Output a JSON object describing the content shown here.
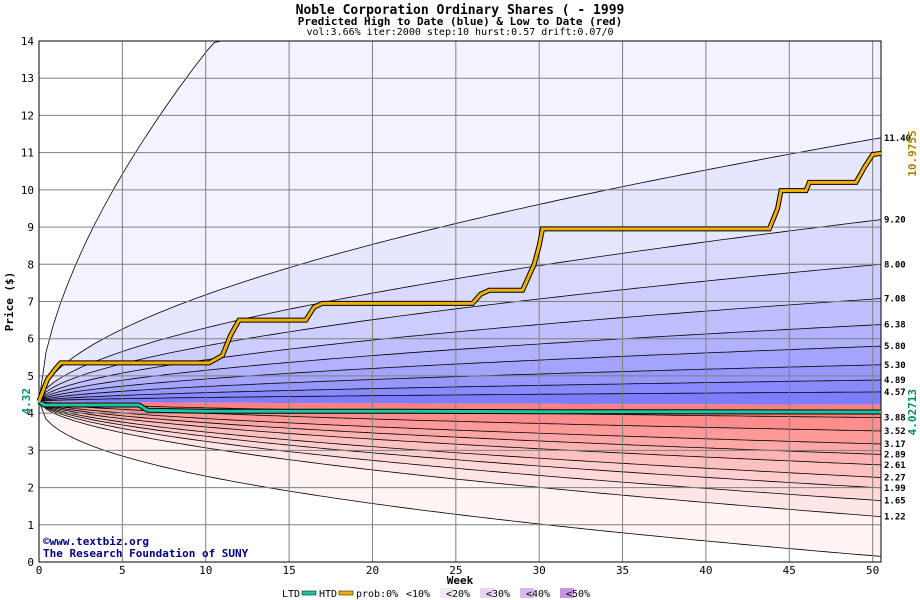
{
  "chart_data": {
    "type": "area",
    "title": "Noble Corporation Ordinary Shares ( - 1999",
    "subtitle": "Predicted High to Date (blue) &  Low to Date (red)",
    "params": "vol:3.66% iter:2000 step:10 hurst:0.57 drift:0.07/0",
    "xlabel": "Week",
    "ylabel": "Price ($)",
    "xlim": [
      0,
      50.5
    ],
    "ylim": [
      0,
      14
    ],
    "xticks": [
      0,
      5,
      10,
      15,
      20,
      25,
      30,
      35,
      40,
      45,
      50
    ],
    "yticks": [
      0,
      1,
      2,
      3,
      4,
      5,
      6,
      7,
      8,
      9,
      10,
      11,
      12,
      13,
      14
    ],
    "grid": true,
    "start_price": 4.32,
    "start_label": "4.32",
    "ltd_final": 4.02713,
    "ltd_final_label": "4.02713",
    "htd_final": 10.9755,
    "htd_final_label": "10.9755",
    "high_percentile_labels": [
      {
        "value": 11.4,
        "label": "11.40"
      },
      {
        "value": 9.2,
        "label": "9.20"
      },
      {
        "value": 8.0,
        "label": "8.00"
      },
      {
        "value": 7.08,
        "label": "7.08"
      },
      {
        "value": 6.38,
        "label": "6.38"
      },
      {
        "value": 5.8,
        "label": "5.80"
      },
      {
        "value": 5.3,
        "label": "5.30"
      },
      {
        "value": 4.89,
        "label": "4.89"
      },
      {
        "value": 4.57,
        "label": "4.57"
      }
    ],
    "low_percentile_labels": [
      {
        "value": 3.88,
        "label": "3.88"
      },
      {
        "value": 3.52,
        "label": "3.52"
      },
      {
        "value": 3.17,
        "label": "3.17"
      },
      {
        "value": 2.89,
        "label": "2.89"
      },
      {
        "value": 2.61,
        "label": "2.61"
      },
      {
        "value": 2.27,
        "label": "2.27"
      },
      {
        "value": 1.99,
        "label": "1.99"
      },
      {
        "value": 1.65,
        "label": "1.65"
      },
      {
        "value": 1.22,
        "label": "1.22"
      }
    ],
    "high_bounds": {
      "outer_top_week10": 13.7,
      "outer_bottom_final": 0.15
    },
    "htd_path": [
      [
        0,
        4.32
      ],
      [
        0.5,
        4.9
      ],
      [
        1,
        5.2
      ],
      [
        1.3,
        5.35
      ],
      [
        10.2,
        5.35
      ],
      [
        11,
        5.55
      ],
      [
        11.5,
        6.1
      ],
      [
        12,
        6.5
      ],
      [
        16,
        6.5
      ],
      [
        16.5,
        6.85
      ],
      [
        17,
        6.95
      ],
      [
        26,
        6.95
      ],
      [
        26.5,
        7.2
      ],
      [
        27,
        7.3
      ],
      [
        29,
        7.3
      ],
      [
        29.3,
        7.6
      ],
      [
        29.7,
        8.0
      ],
      [
        30,
        8.5
      ],
      [
        30.2,
        8.95
      ],
      [
        43.8,
        8.95
      ],
      [
        44.3,
        9.5
      ],
      [
        44.5,
        9.98
      ],
      [
        46,
        9.98
      ],
      [
        46.2,
        10.2
      ],
      [
        49,
        10.2
      ],
      [
        49.5,
        10.6
      ],
      [
        50,
        10.95
      ],
      [
        50.5,
        10.98
      ]
    ],
    "ltd_path": [
      [
        0,
        4.32
      ],
      [
        0.3,
        4.22
      ],
      [
        6,
        4.22
      ],
      [
        6.5,
        4.08
      ],
      [
        10,
        4.05
      ],
      [
        22,
        4.05
      ],
      [
        30,
        4.04
      ],
      [
        50.5,
        4.03
      ]
    ],
    "legend": {
      "ltd": "LTD",
      "htd": "HTD",
      "prob_prefix": "prob:0%",
      "items": [
        "<10%",
        "<20%",
        "<30%",
        "<40%",
        "<50%"
      ]
    },
    "colors": {
      "htd": "#f0b000",
      "ltd": "#18c8a0",
      "band_hi_base": "#f3f3ff",
      "band_hi_core": "#7d7dff",
      "band_lo_base": "#fff3f3",
      "band_lo_core": "#ff8080"
    }
  },
  "credits": {
    "site": "www.textbiz.org",
    "org": "The Research Foundation of SUNY"
  }
}
